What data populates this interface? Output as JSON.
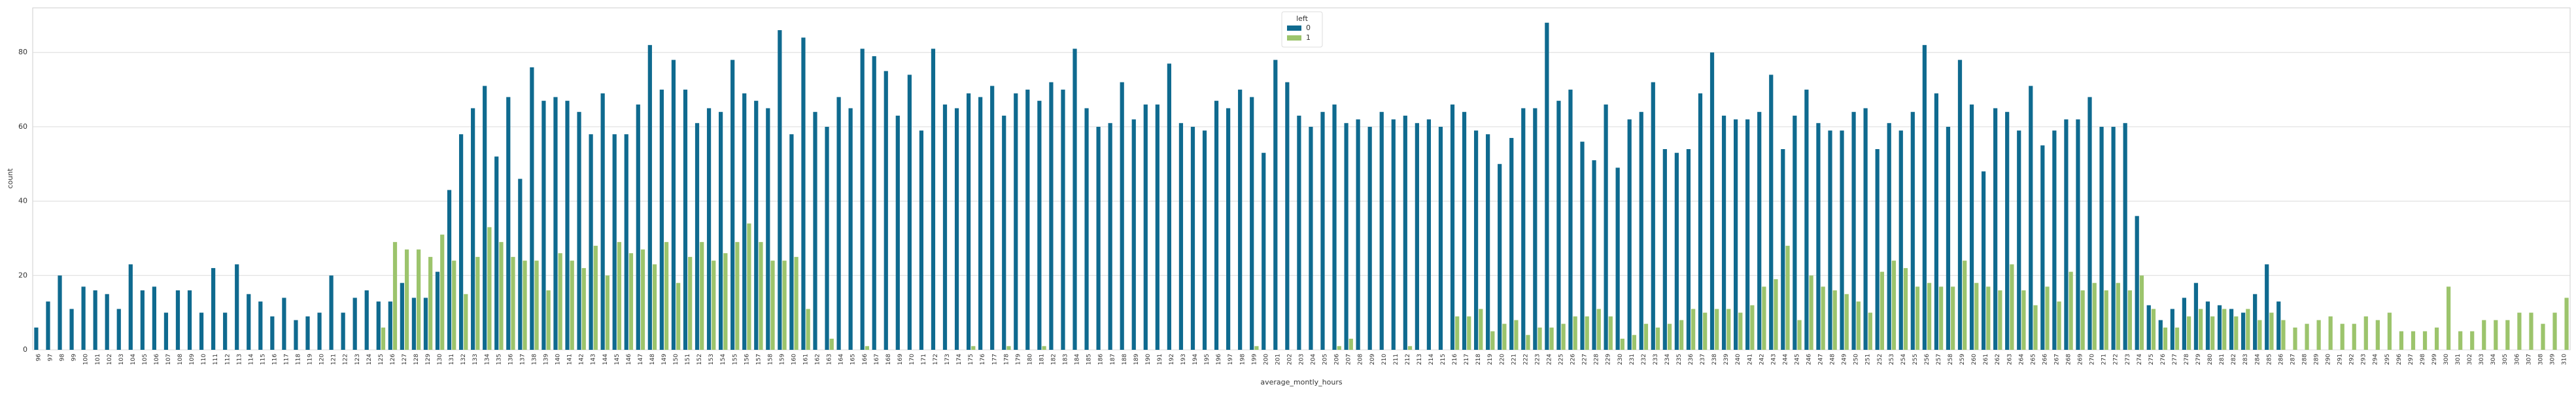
{
  "chart_data": {
    "type": "grouped_bar",
    "x_label": "average_montly_hours",
    "y_label": "count",
    "legend_title": "left",
    "legend_position": "upper center",
    "grid": true,
    "ylim": [
      0,
      92
    ],
    "yticks": [
      0,
      20,
      40,
      60,
      80
    ],
    "categories": [
      96,
      97,
      98,
      99,
      100,
      101,
      102,
      103,
      104,
      105,
      106,
      107,
      108,
      109,
      110,
      111,
      112,
      113,
      114,
      115,
      116,
      117,
      118,
      119,
      120,
      121,
      122,
      123,
      124,
      125,
      126,
      127,
      128,
      129,
      130,
      131,
      132,
      133,
      134,
      135,
      136,
      137,
      138,
      139,
      140,
      141,
      142,
      143,
      144,
      145,
      146,
      147,
      148,
      149,
      150,
      151,
      152,
      153,
      154,
      155,
      156,
      157,
      158,
      159,
      160,
      161,
      162,
      163,
      164,
      165,
      166,
      167,
      168,
      169,
      170,
      171,
      172,
      173,
      174,
      175,
      176,
      177,
      178,
      179,
      180,
      181,
      182,
      183,
      184,
      185,
      186,
      187,
      188,
      189,
      190,
      191,
      192,
      193,
      194,
      195,
      196,
      197,
      198,
      199,
      200,
      201,
      202,
      203,
      204,
      205,
      206,
      207,
      208,
      209,
      210,
      211,
      212,
      213,
      214,
      215,
      216,
      217,
      218,
      219,
      220,
      221,
      222,
      223,
      224,
      225,
      226,
      227,
      228,
      229,
      230,
      231,
      232,
      233,
      234,
      235,
      236,
      237,
      238,
      239,
      240,
      241,
      242,
      243,
      244,
      245,
      246,
      247,
      248,
      249,
      250,
      251,
      252,
      253,
      254,
      255,
      256,
      257,
      258,
      259,
      260,
      261,
      262,
      263,
      264,
      265,
      266,
      267,
      268,
      269,
      270,
      271,
      272,
      273,
      274,
      275,
      276,
      277,
      278,
      279,
      280,
      281,
      282,
      283,
      284,
      285,
      286,
      287,
      288,
      289,
      290,
      291,
      292,
      293,
      294,
      295,
      296,
      297,
      298,
      299,
      300,
      301,
      302,
      303,
      304,
      305,
      306,
      307,
      308,
      309,
      310
    ],
    "series": [
      {
        "name": "0",
        "color": "#0f6a8f",
        "values": [
          6,
          13,
          20,
          11,
          17,
          16,
          15,
          11,
          23,
          16,
          17,
          10,
          16,
          16,
          10,
          22,
          10,
          23,
          15,
          13,
          9,
          14,
          8,
          9,
          10,
          20,
          10,
          14,
          16,
          13,
          13,
          18,
          14,
          14,
          21,
          43,
          58,
          65,
          71,
          52,
          68,
          46,
          76,
          67,
          68,
          67,
          64,
          58,
          69,
          58,
          58,
          66,
          82,
          70,
          78,
          70,
          61,
          65,
          64,
          78,
          69,
          67,
          65,
          86,
          58,
          84,
          64,
          60,
          68,
          65,
          81,
          79,
          75,
          63,
          74,
          59,
          81,
          66,
          65,
          69,
          68,
          71,
          63,
          69,
          70,
          67,
          72,
          70,
          81,
          65,
          60,
          61,
          72,
          62,
          66,
          66,
          77,
          61,
          60,
          59,
          67,
          65,
          70,
          68,
          53,
          78,
          72,
          63,
          60,
          64,
          66,
          61,
          62,
          60,
          64,
          62,
          63,
          61,
          62,
          60,
          66,
          64,
          59,
          58,
          50,
          57,
          65,
          65,
          88,
          67,
          70,
          56,
          51,
          66,
          49,
          62,
          64,
          72,
          54,
          53,
          54,
          69,
          80,
          63,
          62,
          62,
          64,
          74,
          54,
          63,
          70,
          61,
          59,
          59,
          64,
          65,
          54,
          61,
          59,
          64,
          82,
          69,
          60,
          78,
          66,
          48,
          65,
          64,
          59,
          71,
          55,
          59,
          62,
          62,
          68,
          60,
          60,
          61,
          36,
          12,
          8,
          11,
          14,
          18,
          13,
          12,
          11,
          10,
          15,
          23,
          13,
          0,
          0,
          0,
          0,
          0,
          0,
          0,
          0,
          0,
          0,
          0,
          0,
          0,
          0,
          0,
          0,
          0,
          0,
          0,
          0,
          0,
          0,
          0,
          0
        ]
      },
      {
        "name": "1",
        "color": "#9cc46c",
        "values": [
          0,
          0,
          0,
          0,
          0,
          0,
          0,
          0,
          0,
          0,
          0,
          0,
          0,
          0,
          0,
          0,
          0,
          0,
          0,
          0,
          0,
          0,
          0,
          0,
          0,
          0,
          0,
          0,
          0,
          6,
          29,
          27,
          27,
          25,
          31,
          24,
          15,
          25,
          33,
          29,
          25,
          24,
          24,
          16,
          26,
          24,
          22,
          28,
          20,
          29,
          26,
          27,
          23,
          29,
          18,
          25,
          29,
          24,
          26,
          29,
          34,
          29,
          24,
          24,
          25,
          11,
          0,
          3,
          0,
          0,
          1,
          0,
          0,
          0,
          0,
          0,
          0,
          0,
          0,
          1,
          0,
          0,
          1,
          0,
          0,
          1,
          0,
          0,
          0,
          0,
          0,
          0,
          0,
          0,
          0,
          0,
          0,
          0,
          0,
          0,
          0,
          0,
          0,
          1,
          0,
          0,
          0,
          0,
          0,
          0,
          1,
          3,
          0,
          0,
          0,
          0,
          1,
          0,
          0,
          0,
          9,
          9,
          11,
          5,
          7,
          8,
          4,
          6,
          6,
          7,
          9,
          9,
          11,
          9,
          3,
          4,
          7,
          6,
          7,
          8,
          11,
          10,
          11,
          11,
          10,
          12,
          17,
          19,
          28,
          8,
          20,
          17,
          16,
          15,
          13,
          10,
          21,
          24,
          22,
          17,
          18,
          17,
          17,
          24,
          18,
          17,
          16,
          23,
          16,
          12,
          17,
          13,
          21,
          16,
          18,
          16,
          18,
          16,
          20,
          11,
          6,
          6,
          9,
          11,
          9,
          11,
          9,
          11,
          8,
          10,
          8,
          6,
          7,
          8,
          9,
          7,
          7,
          9,
          8,
          10,
          5,
          5,
          5,
          6,
          17,
          5,
          5,
          8,
          8,
          8,
          10,
          10,
          7,
          10,
          14
        ]
      }
    ]
  }
}
